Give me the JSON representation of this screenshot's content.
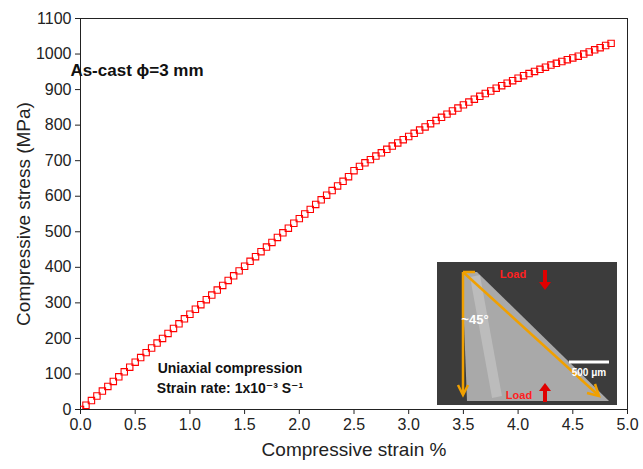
{
  "chart_data": {
    "type": "scatter",
    "x_label": "Compressive strain %",
    "y_label": "Compressive stress (MPa)",
    "annotations": [
      "As-cast ϕ=3 mm",
      "Uniaxial compression",
      "Strain rate: 1x10⁻³ S⁻¹"
    ],
    "inset_labels": {
      "top_load": "Load",
      "bottom_load": "Load",
      "angle": "~45°",
      "scale_bar": "500 μm"
    },
    "xlim": [
      0,
      5
    ],
    "ylim": [
      0,
      1100
    ],
    "xticks": [
      {
        "value": 0,
        "label": "0.0"
      },
      {
        "value": 0.5,
        "label": "0.5"
      },
      {
        "value": 1,
        "label": "1.0"
      },
      {
        "value": 1.5,
        "label": "1.5"
      },
      {
        "value": 2,
        "label": "2.0"
      },
      {
        "value": 2.5,
        "label": "2.5"
      },
      {
        "value": 3,
        "label": "3.0"
      },
      {
        "value": 3.5,
        "label": "3.5"
      },
      {
        "value": 4,
        "label": "4.0"
      },
      {
        "value": 4.5,
        "label": "4.5"
      },
      {
        "value": 5,
        "label": "5.0"
      }
    ],
    "yticks": [
      0,
      100,
      200,
      300,
      400,
      500,
      600,
      700,
      800,
      900,
      1000,
      1100
    ],
    "grid": false,
    "series": [
      {
        "name": "As-cast",
        "color": "#ff0000",
        "marker": "square",
        "x": [
          0,
          0.05,
          0.1,
          0.15,
          0.2,
          0.25,
          0.3,
          0.35,
          0.4,
          0.45,
          0.5,
          0.55,
          0.6,
          0.65,
          0.7,
          0.75,
          0.8,
          0.85,
          0.9,
          0.95,
          1.0,
          1.05,
          1.1,
          1.15,
          1.2,
          1.25,
          1.3,
          1.35,
          1.4,
          1.45,
          1.5,
          1.55,
          1.6,
          1.65,
          1.7,
          1.75,
          1.8,
          1.85,
          1.9,
          1.95,
          2.0,
          2.05,
          2.1,
          2.15,
          2.2,
          2.25,
          2.3,
          2.35,
          2.4,
          2.45,
          2.5,
          2.55,
          2.6,
          2.65,
          2.7,
          2.75,
          2.8,
          2.85,
          2.9,
          2.95,
          3.0,
          3.05,
          3.1,
          3.15,
          3.2,
          3.25,
          3.3,
          3.35,
          3.4,
          3.45,
          3.5,
          3.55,
          3.6,
          3.65,
          3.7,
          3.75,
          3.8,
          3.85,
          3.9,
          3.95,
          4.0,
          4.05,
          4.1,
          4.15,
          4.2,
          4.25,
          4.3,
          4.35,
          4.4,
          4.45,
          4.5,
          4.55,
          4.6,
          4.65,
          4.7,
          4.75,
          4.8,
          4.85
        ],
        "values": [
          0,
          12,
          25,
          38,
          52,
          65,
          79,
          92,
          106,
          119,
          133,
          146,
          160,
          173,
          187,
          200,
          214,
          228,
          241,
          255,
          268,
          282,
          295,
          309,
          322,
          336,
          349,
          363,
          376,
          390,
          403,
          417,
          430,
          444,
          457,
          470,
          484,
          497,
          510,
          524,
          537,
          550,
          563,
          577,
          590,
          603,
          616,
          629,
          642,
          655,
          672,
          684,
          694,
          703,
          713,
          722,
          732,
          741,
          750,
          759,
          768,
          777,
          786,
          795,
          804,
          813,
          822,
          831,
          840,
          848,
          857,
          865,
          873,
          881,
          889,
          896,
          904,
          911,
          918,
          925,
          932,
          939,
          945,
          951,
          957,
          963,
          969,
          974,
          979,
          984,
          989,
          994,
          1000,
          1006,
          1012,
          1018,
          1024,
          1030
        ]
      }
    ]
  }
}
